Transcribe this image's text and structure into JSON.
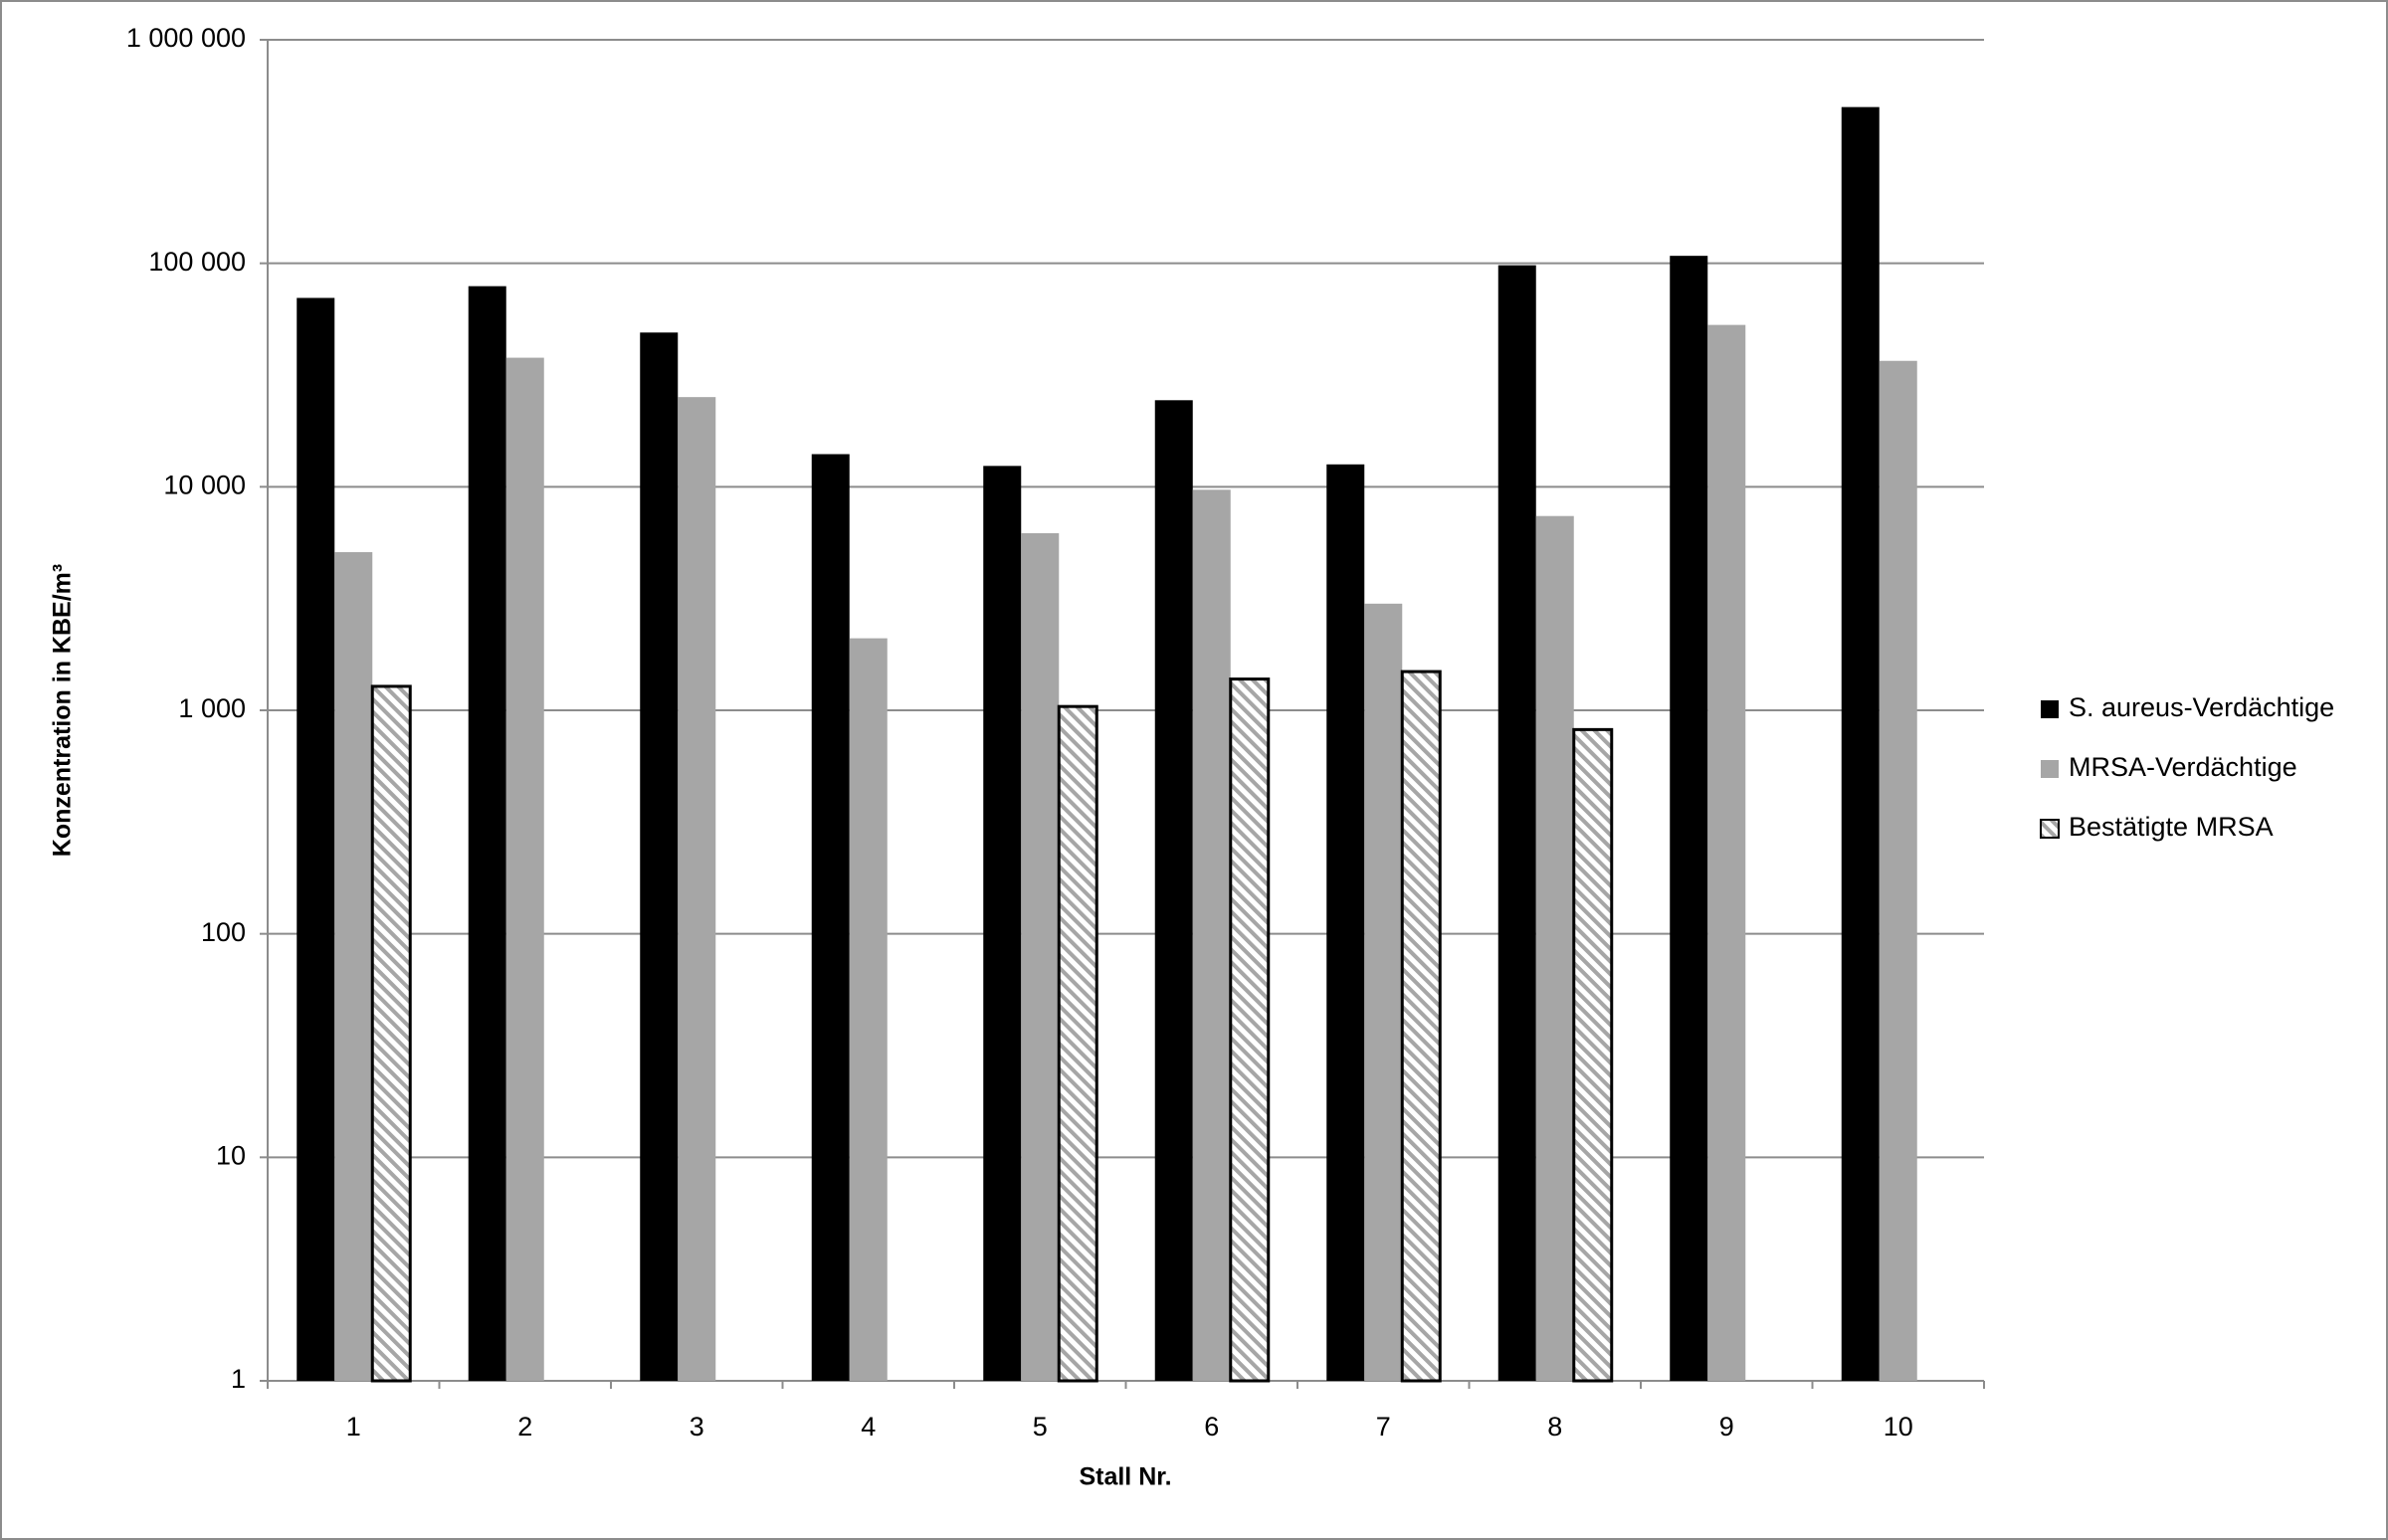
{
  "chart_data": {
    "type": "bar",
    "y_label": "Konzentration in KBE/m³",
    "x_label": "Stall Nr.",
    "categories": [
      "1",
      "2",
      "3",
      "4",
      "5",
      "6",
      "7",
      "8",
      "9",
      "10"
    ],
    "series": [
      {
        "name": "S. aureus-Verdächtige",
        "color": "#000000",
        "values": [
          70000,
          79000,
          49000,
          14000,
          12400,
          24400,
          12600,
          98000,
          108000,
          500000
        ]
      },
      {
        "name": "MRSA-Verdächtige",
        "color": "#a6a6a6",
        "values": [
          5100,
          37800,
          25200,
          2100,
          6200,
          9700,
          3000,
          7400,
          53000,
          36600
        ]
      },
      {
        "name": "Bestätigte MRSA",
        "color": "#a6a6a6",
        "pattern": "hatch",
        "values": [
          1280,
          null,
          null,
          null,
          1040,
          1380,
          1490,
          820,
          null,
          null
        ]
      }
    ],
    "ylim": [
      1,
      1000000
    ],
    "yticks": [
      1,
      10,
      100,
      {
        "value": 1000,
        "label": "1 000"
      },
      {
        "value": 10000,
        "label": "10 000"
      },
      {
        "value": 100000,
        "label": "100 000"
      },
      {
        "value": 1000000,
        "label": "1 000 000"
      }
    ],
    "log_scale": true,
    "grid": true,
    "legend": "right"
  }
}
